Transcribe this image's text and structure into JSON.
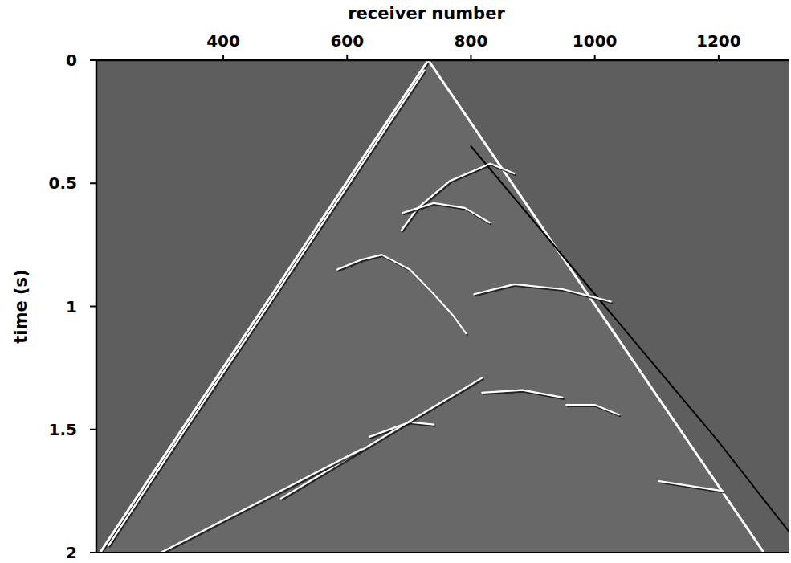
{
  "chart_data": {
    "type": "line",
    "x_label": "receiver number",
    "y_label": "time (s)",
    "xlim": [
      195,
      1313
    ],
    "ylim": [
      0,
      2
    ],
    "xticks": [
      400,
      600,
      800,
      1000,
      1200
    ],
    "yticks": [
      0,
      0.5,
      1,
      1.5,
      2
    ],
    "grid": false,
    "series": [
      {
        "type": "first_arrival",
        "color": "#ffffff",
        "x": [
          731,
          598,
          466,
          333,
          201
        ],
        "values": [
          0,
          0.5,
          1,
          1.5,
          2
        ]
      },
      {
        "type": "line",
        "color": "#ffffff",
        "x": [
          725,
          590,
          458,
          325,
          215
        ],
        "values": [
          0.04,
          0.55,
          1.05,
          1.55,
          1.97
        ]
      },
      {
        "type": "first_arrival",
        "color": "#ffffff",
        "x": [
          731,
          1002,
          1273
        ],
        "values": [
          0,
          1,
          2
        ]
      },
      {
        "type": "line",
        "color": "#000000",
        "x": [
          800,
          1000,
          1200,
          1318
        ],
        "values": [
          0.35,
          0.95,
          1.55,
          1.93
        ]
      },
      {
        "type": "line",
        "color": "#ffffff",
        "x": [
          688,
          714,
          766,
          831,
          870
        ],
        "values": [
          0.69,
          0.6,
          0.49,
          0.42,
          0.46
        ]
      },
      {
        "type": "line",
        "color": "#ffffff",
        "x": [
          584,
          623,
          656,
          701,
          740,
          772,
          792
        ],
        "values": [
          0.85,
          0.81,
          0.79,
          0.85,
          0.95,
          1.04,
          1.11
        ]
      },
      {
        "type": "line",
        "color": "#ffffff",
        "x": [
          690,
          740,
          790,
          830
        ],
        "values": [
          0.62,
          0.58,
          0.6,
          0.66
        ]
      },
      {
        "type": "line",
        "color": "#ffffff",
        "x": [
          805,
          870,
          948,
          1026
        ],
        "values": [
          0.95,
          0.91,
          0.93,
          0.98
        ]
      },
      {
        "type": "line",
        "color": "#ffffff",
        "x": [
          818,
          883,
          948
        ],
        "values": [
          1.35,
          1.34,
          1.37
        ]
      },
      {
        "type": "line",
        "color": "#ffffff",
        "x": [
          954,
          1000,
          1039
        ],
        "values": [
          1.4,
          1.4,
          1.44
        ]
      },
      {
        "type": "line",
        "color": "#ffffff",
        "x": [
          636,
          701,
          740
        ],
        "values": [
          1.53,
          1.47,
          1.48
        ]
      },
      {
        "type": "line",
        "color": "#ffffff",
        "x": [
          493,
          818
        ],
        "values": [
          1.78,
          1.29
        ]
      },
      {
        "type": "line",
        "color": "#ffffff",
        "x": [
          299,
          623
        ],
        "values": [
          2.0,
          1.58
        ]
      },
      {
        "type": "line",
        "color": "#ffffff",
        "x": [
          1104,
          1207
        ],
        "values": [
          1.71,
          1.75
        ]
      }
    ]
  }
}
